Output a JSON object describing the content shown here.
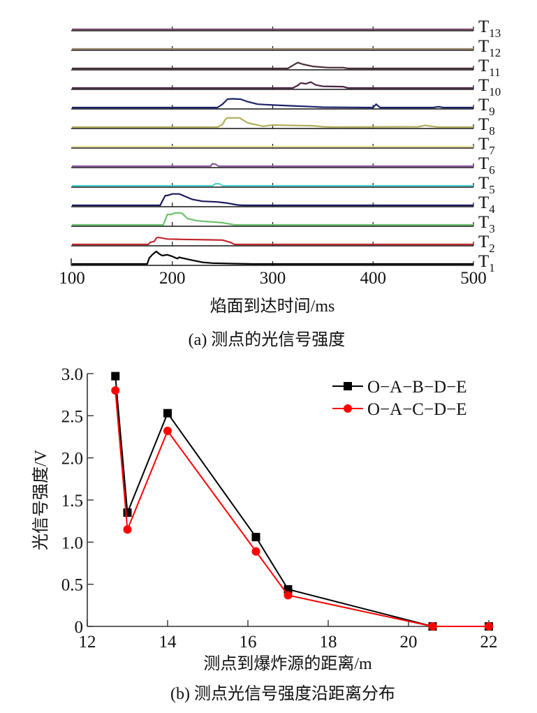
{
  "chart_data": [
    {
      "id": "a",
      "type": "line",
      "title": "",
      "caption": "(a)  测点的光信号强度",
      "xlabel": "焰面到达时间/ms",
      "ylabel": "",
      "xlim": [
        100,
        500
      ],
      "xticks": [
        100,
        200,
        300,
        400,
        500
      ],
      "xtick_labels": [
        "100",
        "200",
        "300",
        "400",
        "500"
      ],
      "grid": false,
      "legend": "right-side lane labels",
      "note": "stacked traces; y values are relative signal amplitude (arbitrary units, 0 = baseline)",
      "series": [
        {
          "name": "T1",
          "label_main": "T",
          "label_sub": "1",
          "color": "#000000",
          "points": [
            [
              100,
              0
            ],
            [
              175,
              0
            ],
            [
              177,
              0.35
            ],
            [
              180,
              0.55
            ],
            [
              184,
              0.75
            ],
            [
              187,
              0.6
            ],
            [
              190,
              0.5
            ],
            [
              195,
              0.55
            ],
            [
              200,
              0.45
            ],
            [
              205,
              0.32
            ],
            [
              207,
              0.4
            ],
            [
              210,
              0.35
            ],
            [
              220,
              0.22
            ],
            [
              230,
              0.1
            ],
            [
              240,
              0.05
            ],
            [
              260,
              0.02
            ],
            [
              280,
              0
            ],
            [
              500,
              0
            ]
          ]
        },
        {
          "name": "T2",
          "label_main": "T",
          "label_sub": "2",
          "color": "#c0272d",
          "points": [
            [
              100,
              0
            ],
            [
              176,
              0
            ],
            [
              178,
              0.12
            ],
            [
              182,
              0.18
            ],
            [
              184,
              0.38
            ],
            [
              186,
              0.42
            ],
            [
              190,
              0.38
            ],
            [
              195,
              0.32
            ],
            [
              210,
              0.3
            ],
            [
              240,
              0.27
            ],
            [
              250,
              0.26
            ],
            [
              258,
              0.12
            ],
            [
              262,
              0
            ],
            [
              500,
              0
            ]
          ]
        },
        {
          "name": "T3",
          "label_main": "T",
          "label_sub": "3",
          "color": "#6cc06c",
          "points": [
            [
              100,
              0
            ],
            [
              191,
              0
            ],
            [
              193,
              0.3
            ],
            [
              195,
              0.62
            ],
            [
              199,
              0.62
            ],
            [
              202,
              0.7
            ],
            [
              207,
              0.72
            ],
            [
              210,
              0.68
            ],
            [
              215,
              0.38
            ],
            [
              225,
              0.24
            ],
            [
              250,
              0.13
            ],
            [
              262,
              0
            ],
            [
              500,
              0
            ]
          ]
        },
        {
          "name": "T4",
          "label_main": "T",
          "label_sub": "4",
          "color": "#1b1b5e",
          "points": [
            [
              100,
              0
            ],
            [
              188,
              0
            ],
            [
              190,
              0.25
            ],
            [
              193,
              0.58
            ],
            [
              196,
              0.6
            ],
            [
              200,
              0.68
            ],
            [
              207,
              0.68
            ],
            [
              212,
              0.55
            ],
            [
              220,
              0.35
            ],
            [
              230,
              0.24
            ],
            [
              245,
              0.2
            ],
            [
              255,
              0.13
            ],
            [
              265,
              0.02
            ],
            [
              270,
              0
            ],
            [
              500,
              0
            ]
          ]
        },
        {
          "name": "T5",
          "label_main": "T",
          "label_sub": "5",
          "color": "#4fd0d0",
          "points": [
            [
              100,
              0
            ],
            [
              240,
              0
            ],
            [
              243,
              0.12
            ],
            [
              247,
              0.12
            ],
            [
              250,
              0
            ],
            [
              500,
              0
            ]
          ]
        },
        {
          "name": "T6",
          "label_main": "T",
          "label_sub": "6",
          "color": "#8b5a9b",
          "points": [
            [
              100,
              0
            ],
            [
              238,
              0
            ],
            [
              240,
              0.15
            ],
            [
              243,
              0.12
            ],
            [
              246,
              0
            ],
            [
              500,
              0
            ]
          ]
        },
        {
          "name": "T7",
          "label_main": "T",
          "label_sub": "7",
          "color": "#e6e0a0",
          "points": [
            [
              100,
              0
            ],
            [
              500,
              0
            ]
          ]
        },
        {
          "name": "T8",
          "label_main": "T",
          "label_sub": "8",
          "color": "#b0ad5a",
          "points": [
            [
              100,
              0
            ],
            [
              245,
              0
            ],
            [
              250,
              0.15
            ],
            [
              253,
              0.48
            ],
            [
              255,
              0.55
            ],
            [
              267,
              0.55
            ],
            [
              275,
              0.25
            ],
            [
              285,
              0.12
            ],
            [
              290,
              0.05
            ],
            [
              300,
              0.12
            ],
            [
              320,
              0.1
            ],
            [
              340,
              0.08
            ],
            [
              350,
              0.02
            ],
            [
              360,
              0
            ],
            [
              445,
              0.02
            ],
            [
              452,
              0.1
            ],
            [
              458,
              0.05
            ],
            [
              465,
              0
            ],
            [
              500,
              0
            ]
          ]
        },
        {
          "name": "T9",
          "label_main": "T",
          "label_sub": "9",
          "color": "#1a2466",
          "points": [
            [
              100,
              0
            ],
            [
              245,
              0
            ],
            [
              250,
              0.2
            ],
            [
              255,
              0.5
            ],
            [
              260,
              0.52
            ],
            [
              268,
              0.5
            ],
            [
              275,
              0.35
            ],
            [
              285,
              0.2
            ],
            [
              300,
              0.15
            ],
            [
              320,
              0.1
            ],
            [
              340,
              0.05
            ],
            [
              350,
              0.02
            ],
            [
              400,
              0
            ],
            [
              403,
              0.2
            ],
            [
              407,
              0
            ],
            [
              460,
              0
            ],
            [
              465,
              0.05
            ],
            [
              470,
              0
            ],
            [
              500,
              0
            ]
          ]
        },
        {
          "name": "T10",
          "label_main": "T",
          "label_sub": "10",
          "color": "#4a2444",
          "points": [
            [
              100,
              0
            ],
            [
              320,
              0
            ],
            [
              325,
              0.15
            ],
            [
              328,
              0.3
            ],
            [
              333,
              0.25
            ],
            [
              338,
              0.35
            ],
            [
              343,
              0.18
            ],
            [
              350,
              0.1
            ],
            [
              370,
              0.08
            ],
            [
              375,
              0
            ],
            [
              500,
              0
            ]
          ]
        },
        {
          "name": "T11",
          "label_main": "T",
          "label_sub": "11",
          "color": "#4a2f35",
          "points": [
            [
              100,
              0
            ],
            [
              315,
              0
            ],
            [
              320,
              0.18
            ],
            [
              325,
              0.35
            ],
            [
              330,
              0.25
            ],
            [
              340,
              0.12
            ],
            [
              355,
              0.05
            ],
            [
              370,
              0.05
            ],
            [
              375,
              0
            ],
            [
              500,
              0
            ]
          ]
        },
        {
          "name": "T12",
          "label_main": "T",
          "label_sub": "12",
          "color": "#9c8a6e",
          "points": [
            [
              100,
              0
            ],
            [
              500,
              0
            ]
          ]
        },
        {
          "name": "T13",
          "label_main": "T",
          "label_sub": "13",
          "color": "#7a4a70",
          "points": [
            [
              100,
              0
            ],
            [
              500,
              0
            ]
          ]
        }
      ]
    },
    {
      "id": "b",
      "type": "line",
      "title": "",
      "caption": "(b)  测点光信号强度沿距离分布",
      "xlabel": "测点到爆炸源的距离/m",
      "ylabel": "光信号强度/V",
      "xlim": [
        12,
        22
      ],
      "ylim": [
        0,
        3.0
      ],
      "xticks": [
        12,
        14,
        16,
        18,
        20,
        22
      ],
      "xtick_labels": [
        "12",
        "14",
        "16",
        "18",
        "20",
        "22"
      ],
      "yticks": [
        0,
        0.5,
        1.0,
        1.5,
        2.0,
        2.5,
        3.0
      ],
      "ytick_labels": [
        "0",
        "0.5",
        "1.0",
        "1.5",
        "2.0",
        "2.5",
        "3.0"
      ],
      "grid": false,
      "legend": "top-right",
      "series": [
        {
          "name": "O−A−B−D−E",
          "color": "#000000",
          "marker": "square",
          "x": [
            12.7,
            13.0,
            14.0,
            16.2,
            17.0,
            20.6,
            22.0
          ],
          "y": [
            2.97,
            1.35,
            2.53,
            1.06,
            0.44,
            0.0,
            0.0
          ]
        },
        {
          "name": "O−A−C−D−E",
          "color": "#ff0000",
          "marker": "circle",
          "x": [
            12.7,
            13.0,
            14.0,
            16.2,
            17.0,
            20.6,
            22.0
          ],
          "y": [
            2.8,
            1.15,
            2.32,
            0.89,
            0.37,
            0.0,
            0.0
          ]
        }
      ]
    }
  ]
}
